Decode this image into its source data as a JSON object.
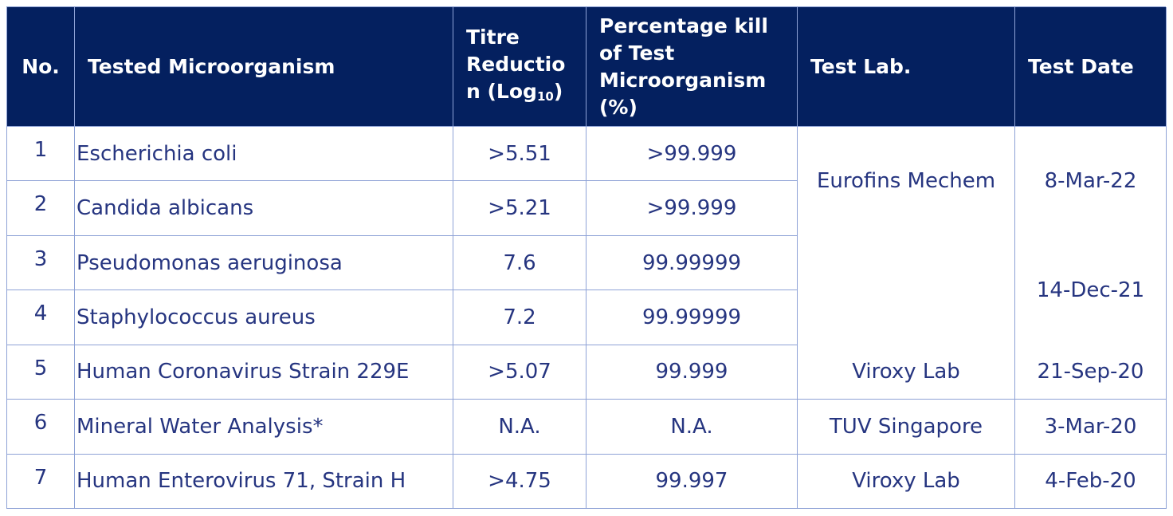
{
  "table": {
    "headers": [
      "No.",
      "Tested Microorganism",
      {
        "main": "Titre Reduction (Log",
        "sub": "10",
        "tail": ")"
      },
      "Percentage kill of Test Microorganism (%)",
      "Test Lab.",
      "Test Date"
    ],
    "rows": [
      [
        "1",
        "Escherichia coli",
        ">5.51",
        ">99.999"
      ],
      [
        "2",
        "Candida albicans",
        ">5.21",
        ">99.999"
      ],
      [
        "3",
        "Pseudomonas aeruginosa",
        "7.6",
        "99.99999"
      ],
      [
        "4",
        "Staphylococcus aureus",
        "7.2",
        "99.99999"
      ],
      [
        "5",
        "Human Coronavirus Strain 229E",
        ">5.07",
        "99.999"
      ],
      [
        "6",
        "Mineral Water Analysis*",
        "N.A.",
        "N.A."
      ],
      [
        "7",
        "Human Enterovirus 71, Strain H",
        ">4.75",
        "99.997"
      ]
    ],
    "test_labs": [
      "Eurofins Mechem",
      "Viroxy Lab",
      "TUV Singapore",
      "Viroxy Lab"
    ],
    "test_dates": [
      "8-Mar-22",
      "14-Dec-21",
      "21-Sep-20",
      "3-Mar-20",
      "4-Feb-20"
    ]
  }
}
